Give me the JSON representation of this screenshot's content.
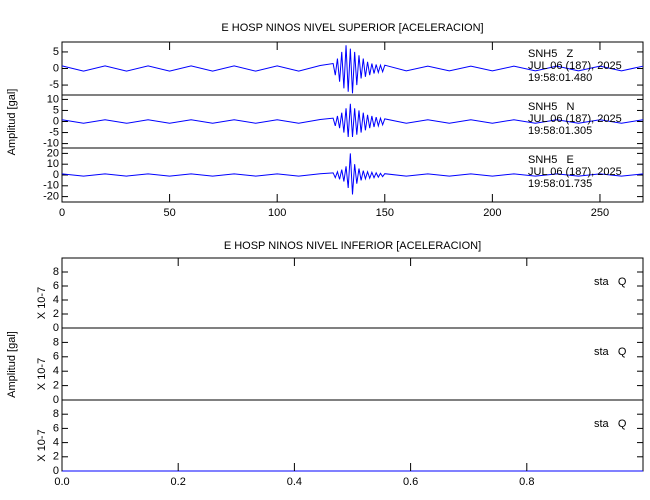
{
  "chart_data": [
    {
      "type": "line",
      "title": "E HOSP NINOS NIVEL SUPERIOR [ACELERACION]",
      "ylabel": "Amplitud [gal]",
      "xlim": [
        0,
        270
      ],
      "xticks": [
        0,
        50,
        100,
        150,
        200,
        250
      ],
      "panels": [
        {
          "ylim": [
            -8,
            8
          ],
          "yticks": [
            -5,
            0,
            5
          ],
          "labels": [
            "SNH5   Z",
            "JUL 06 (187), 2025",
            "19:58:01.480"
          ],
          "series": [
            {
              "color": "#0000ff",
              "x": [
                0,
                10,
                20,
                30,
                40,
                50,
                60,
                70,
                80,
                90,
                100,
                110,
                120,
                126,
                127,
                128,
                129,
                130,
                131,
                132,
                133,
                134,
                135,
                136,
                137,
                138,
                139,
                140,
                141,
                142,
                143,
                144,
                145,
                146,
                147,
                148,
                149,
                150,
                160,
                170,
                180,
                190,
                200,
                210,
                220,
                230,
                240,
                250,
                260,
                270
              ],
              "values": [
                0.8,
                -0.8,
                0.8,
                -0.8,
                0.8,
                -0.8,
                0.8,
                -0.8,
                0.8,
                -0.8,
                0.8,
                -0.8,
                0.9,
                1.5,
                -2,
                3,
                -4,
                5,
                -6,
                7,
                -7,
                6,
                -7.5,
                5,
                -5,
                4,
                -3,
                3,
                -2.5,
                2,
                -2,
                1.5,
                -1.5,
                1.2,
                -1.2,
                1,
                -1,
                1,
                -0.7,
                0.7,
                -0.7,
                0.7,
                -0.7,
                0.7,
                -0.7,
                0.7,
                -0.7,
                0.7,
                -0.7,
                0.7
              ]
            }
          ]
        },
        {
          "ylim": [
            -12,
            12
          ],
          "yticks": [
            -10,
            -5,
            0,
            5,
            10
          ],
          "labels": [
            "SNH5   N",
            "JUL 06 (187), 2025",
            "19:58:01.305"
          ],
          "series": [
            {
              "color": "#0000ff",
              "x": [
                0,
                10,
                20,
                30,
                40,
                50,
                60,
                70,
                80,
                90,
                100,
                110,
                120,
                126,
                127,
                128,
                129,
                130,
                131,
                132,
                133,
                134,
                135,
                136,
                137,
                138,
                139,
                140,
                141,
                142,
                143,
                144,
                145,
                146,
                147,
                148,
                149,
                150,
                160,
                170,
                180,
                190,
                200,
                210,
                220,
                230,
                240,
                250,
                260,
                270
              ],
              "values": [
                0.8,
                -0.8,
                0.8,
                -0.8,
                0.8,
                -0.8,
                0.8,
                -0.8,
                0.8,
                -0.8,
                0.8,
                -0.8,
                0.9,
                1.5,
                -2,
                2.5,
                -3,
                4,
                -5,
                6,
                -7,
                8,
                -7,
                6,
                -6,
                5,
                -5,
                4,
                -4,
                3,
                -3,
                2.5,
                -2.5,
                2,
                -2,
                1.5,
                -1.5,
                1.2,
                -0.8,
                0.8,
                -0.8,
                0.8,
                -0.8,
                0.8,
                -0.8,
                0.8,
                -0.8,
                0.8,
                -0.8,
                0.8
              ]
            }
          ]
        },
        {
          "ylim": [
            -25,
            25
          ],
          "yticks": [
            -20,
            -10,
            0,
            10,
            20
          ],
          "labels": [
            "SNH5   E",
            "JUL 06 (187), 2025",
            "19:58:01.735"
          ],
          "series": [
            {
              "color": "#0000ff",
              "x": [
                0,
                10,
                20,
                30,
                40,
                50,
                60,
                70,
                80,
                90,
                100,
                110,
                120,
                126,
                127,
                128,
                129,
                130,
                131,
                132,
                133,
                134,
                135,
                136,
                137,
                138,
                139,
                140,
                141,
                142,
                143,
                144,
                145,
                146,
                147,
                148,
                149,
                150,
                160,
                170,
                180,
                190,
                200,
                210,
                220,
                230,
                240,
                250,
                260,
                270
              ],
              "values": [
                1,
                -1,
                1,
                -1,
                1,
                -1,
                1,
                -1,
                1,
                -1,
                1,
                -1,
                1.2,
                2,
                -2.5,
                3,
                -4,
                5,
                -6,
                8,
                -12,
                20,
                -18,
                10,
                -8,
                6,
                -5,
                4,
                -3.5,
                3,
                -3,
                2.5,
                -2.5,
                2,
                -2,
                1.5,
                -1.5,
                1.2,
                -1,
                1,
                -1,
                1,
                -1,
                1,
                -1,
                1,
                -1,
                1,
                -1,
                1
              ]
            }
          ]
        }
      ]
    },
    {
      "type": "line",
      "title": "E HOSP NINOS NIVEL INFERIOR [ACELERACION]",
      "ylabel": "Amplitud [gal]",
      "xlim": [
        0,
        1
      ],
      "xticks": [
        {
          "value": 0,
          "label": "0.0"
        },
        0.2,
        0.4,
        0.6,
        0.8
      ],
      "panels": [
        {
          "ylim": [
            0,
            10
          ],
          "yticks": [
            0,
            2,
            4,
            6,
            8
          ],
          "ylabel": "X 10-7",
          "labels": [
            "sta   Q"
          ],
          "series": [
            {
              "color": "#0000ff",
              "x": [
                0,
                1
              ],
              "values": [
                0,
                0
              ]
            }
          ]
        },
        {
          "ylim": [
            0,
            10
          ],
          "yticks": [
            0,
            2,
            4,
            6,
            8
          ],
          "ylabel": "X 10-7",
          "labels": [
            "sta   Q"
          ],
          "series": [
            {
              "color": "#0000ff",
              "x": [
                0,
                1
              ],
              "values": [
                0,
                0
              ]
            }
          ]
        },
        {
          "ylim": [
            0,
            10
          ],
          "yticks": [
            0,
            2,
            4,
            6,
            8
          ],
          "ylabel": "X 10-7",
          "labels": [
            "sta   Q"
          ],
          "series": [
            {
              "color": "#0000ff",
              "x": [
                0,
                1
              ],
              "values": [
                0,
                0
              ]
            }
          ]
        }
      ]
    }
  ]
}
